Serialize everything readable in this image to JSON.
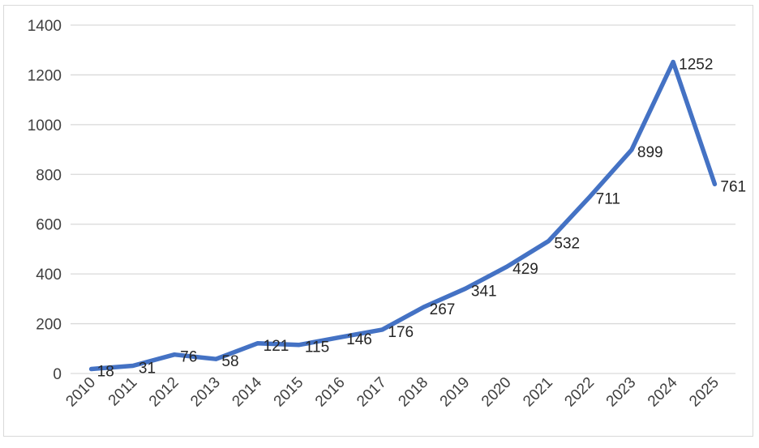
{
  "chart_data": {
    "type": "line",
    "title": "",
    "xlabel": "",
    "ylabel": "",
    "categories": [
      "2010",
      "2011",
      "2012",
      "2013",
      "2014",
      "2015",
      "2016",
      "2017",
      "2018",
      "2019",
      "2020",
      "2021",
      "2022",
      "2023",
      "2024",
      "2025"
    ],
    "series": [
      {
        "values": [
          18,
          31,
          76,
          58,
          121,
          115,
          146,
          176,
          267,
          341,
          429,
          532,
          711,
          899,
          1252,
          761
        ]
      }
    ],
    "ylim": [
      0,
      1400
    ],
    "yticks": [
      0,
      200,
      400,
      600,
      800,
      1000,
      1200,
      1400
    ],
    "grid": true,
    "legend": "none",
    "colors": {
      "line": "#4472c4",
      "grid": "#d9d9d9",
      "axis": "#d9d9d9",
      "text": "#404040"
    }
  }
}
